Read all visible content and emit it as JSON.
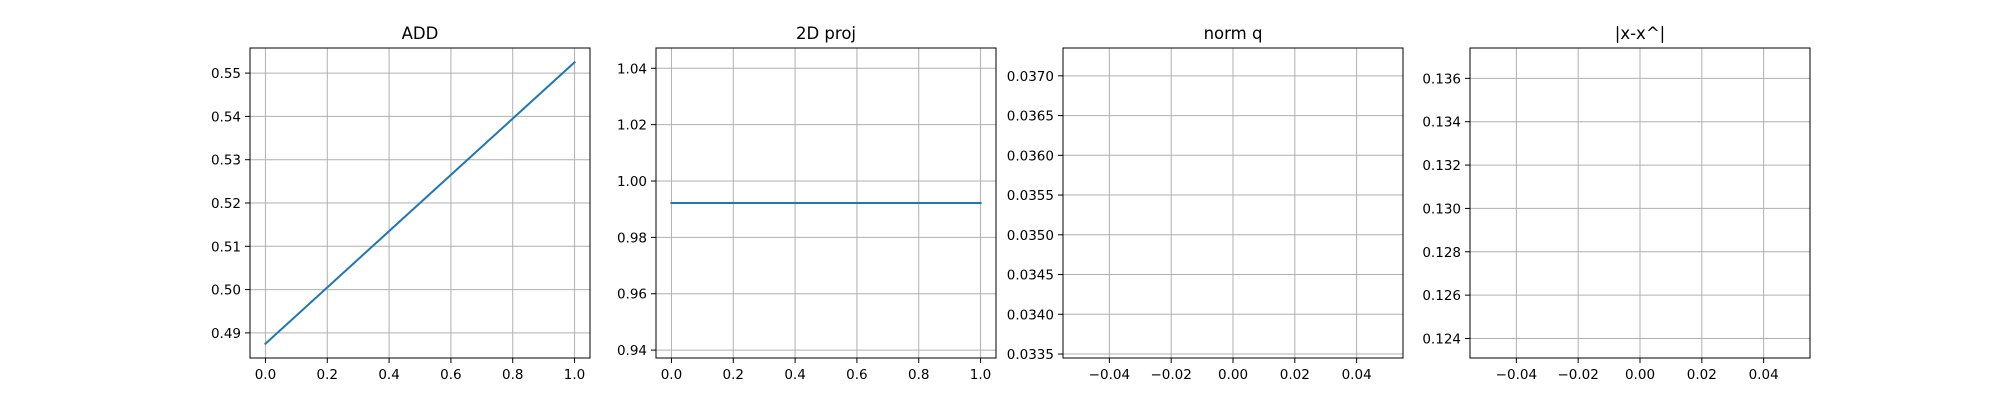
{
  "chart_data": [
    {
      "type": "line",
      "title": "ADD",
      "xlabel": "",
      "ylabel": "",
      "xlim": [
        -0.05,
        1.05
      ],
      "ylim": [
        0.4842,
        0.5558
      ],
      "grid": true,
      "xticks": [
        0.0,
        0.2,
        0.4,
        0.6,
        0.8,
        1.0
      ],
      "xtick_labels": [
        "0.0",
        "0.2",
        "0.4",
        "0.6",
        "0.8",
        "1.0"
      ],
      "yticks": [
        0.49,
        0.5,
        0.51,
        0.52,
        0.53,
        0.54,
        0.55
      ],
      "ytick_labels": [
        "0.49",
        "0.50",
        "0.51",
        "0.52",
        "0.53",
        "0.54",
        "0.55"
      ],
      "series": [
        {
          "color": "#1f77b4",
          "x": [
            0,
            1
          ],
          "y": [
            0.4875,
            0.5525
          ]
        }
      ]
    },
    {
      "type": "line",
      "title": "2D proj",
      "xlabel": "",
      "ylabel": "",
      "xlim": [
        -0.05,
        1.05
      ],
      "ylim": [
        0.9372,
        1.0472
      ],
      "grid": true,
      "xticks": [
        0.0,
        0.2,
        0.4,
        0.6,
        0.8,
        1.0
      ],
      "xtick_labels": [
        "0.0",
        "0.2",
        "0.4",
        "0.6",
        "0.8",
        "1.0"
      ],
      "yticks": [
        0.94,
        0.96,
        0.98,
        1.0,
        1.02,
        1.04
      ],
      "ytick_labels": [
        "0.94",
        "0.96",
        "0.98",
        "1.00",
        "1.02",
        "1.04"
      ],
      "series": [
        {
          "color": "#1f77b4",
          "x": [
            0,
            1
          ],
          "y": [
            0.9922,
            0.9922
          ]
        }
      ]
    },
    {
      "type": "line",
      "title": "norm q",
      "xlabel": "",
      "ylabel": "",
      "xlim": [
        -0.055,
        0.055
      ],
      "ylim": [
        0.03345,
        0.03735
      ],
      "grid": true,
      "xticks": [
        -0.04,
        -0.02,
        0.0,
        0.02,
        0.04
      ],
      "xtick_labels": [
        "−0.04",
        "−0.02",
        "0.00",
        "0.02",
        "0.04"
      ],
      "yticks": [
        0.0335,
        0.034,
        0.0345,
        0.035,
        0.0355,
        0.036,
        0.0365,
        0.037
      ],
      "ytick_labels": [
        "0.0335",
        "0.0340",
        "0.0345",
        "0.0350",
        "0.0355",
        "0.0360",
        "0.0365",
        "0.0370"
      ],
      "series": []
    },
    {
      "type": "line",
      "title": "|x-x^|",
      "xlabel": "",
      "ylabel": "",
      "xlim": [
        -0.055,
        0.055
      ],
      "ylim": [
        0.1231,
        0.1374
      ],
      "grid": true,
      "xticks": [
        -0.04,
        -0.02,
        0.0,
        0.02,
        0.04
      ],
      "xtick_labels": [
        "−0.04",
        "−0.02",
        "0.00",
        "0.02",
        "0.04"
      ],
      "yticks": [
        0.124,
        0.126,
        0.128,
        0.13,
        0.132,
        0.134,
        0.136
      ],
      "ytick_labels": [
        "0.124",
        "0.126",
        "0.128",
        "0.130",
        "0.132",
        "0.134",
        "0.136"
      ],
      "series": []
    }
  ]
}
